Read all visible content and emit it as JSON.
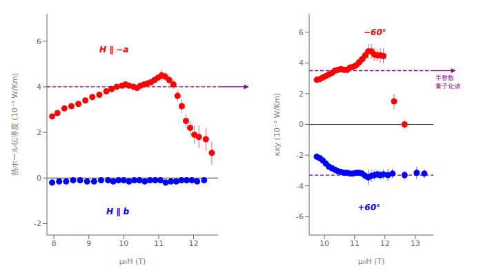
{
  "chart_data": [
    {
      "type": "scatter",
      "x_label": "μ₀H (T)",
      "y_label": "熱ホール伝導度 (10⁻³ W/Km)",
      "xlim": [
        7.8,
        12.7
      ],
      "ylim": [
        -2.5,
        7.2
      ],
      "xticks": [
        8,
        9,
        10,
        11,
        12
      ],
      "yticks": [
        -2,
        0,
        2,
        4,
        6
      ],
      "series": [
        {
          "color": "red",
          "marker": "circle",
          "x": [
            7.95,
            8.1,
            8.3,
            8.5,
            8.7,
            8.9,
            9.1,
            9.3,
            9.5,
            9.65,
            9.8,
            9.95,
            10.05,
            10.15,
            10.28,
            10.38,
            10.48,
            10.58,
            10.68,
            10.78,
            10.88,
            10.98,
            11.08,
            11.18,
            11.3,
            11.42,
            11.54,
            11.66,
            11.78,
            11.9,
            12.02,
            12.15,
            12.35,
            12.52
          ],
          "values": [
            2.7,
            2.85,
            3.05,
            3.15,
            3.25,
            3.4,
            3.55,
            3.65,
            3.8,
            3.9,
            4.0,
            4.05,
            4.1,
            4.05,
            4.0,
            3.95,
            4.05,
            4.1,
            4.15,
            4.2,
            4.3,
            4.4,
            4.5,
            4.45,
            4.3,
            4.1,
            3.6,
            3.15,
            2.5,
            2.2,
            1.9,
            1.8,
            1.7,
            1.1
          ],
          "errors": [
            0.1,
            0.1,
            0.1,
            0.1,
            0.1,
            0.1,
            0.15,
            0.1,
            0.1,
            0.15,
            0.1,
            0.1,
            0.1,
            0.1,
            0.15,
            0.1,
            0.1,
            0.1,
            0.1,
            0.1,
            0.1,
            0.1,
            0.25,
            0.2,
            0.2,
            0.2,
            0.25,
            0.3,
            0.3,
            0.3,
            0.4,
            0.5,
            0.5,
            0.5
          ]
        },
        {
          "color": "blue",
          "marker": "circle",
          "x": [
            7.95,
            8.15,
            8.35,
            8.55,
            8.75,
            8.95,
            9.15,
            9.35,
            9.55,
            9.7,
            9.85,
            10.0,
            10.15,
            10.3,
            10.45,
            10.6,
            10.75,
            10.9,
            11.05,
            11.2,
            11.35,
            11.5,
            11.65,
            11.8,
            11.95,
            12.1,
            12.3
          ],
          "values": [
            -0.2,
            -0.15,
            -0.15,
            -0.1,
            -0.1,
            -0.15,
            -0.15,
            -0.1,
            -0.1,
            -0.15,
            -0.1,
            -0.1,
            -0.15,
            -0.1,
            -0.1,
            -0.15,
            -0.1,
            -0.1,
            -0.1,
            -0.2,
            -0.15,
            -0.15,
            -0.1,
            -0.1,
            -0.1,
            -0.15,
            -0.1
          ],
          "errors": [
            0.1,
            0.1,
            0.1,
            0.1,
            0.1,
            0.1,
            0.1,
            0.1,
            0.1,
            0.1,
            0.1,
            0.1,
            0.15,
            0.1,
            0.1,
            0.1,
            0.1,
            0.1,
            0.1,
            0.15,
            0.1,
            0.1,
            0.1,
            0.1,
            0.1,
            0.1,
            0.1
          ]
        }
      ],
      "reference_lines": [
        {
          "y": 4.0,
          "color": "#8b008b",
          "line_style": "dashed"
        },
        {
          "y": 0,
          "color": "black",
          "line_style": "solid"
        }
      ],
      "annotations": [
        {
          "text": "H ∥ −a",
          "x": 9.3,
          "y": 5.5,
          "color": "red"
        },
        {
          "text": "H ∥ b",
          "x": 9.5,
          "y": -1.6,
          "color": "blue"
        }
      ]
    },
    {
      "type": "scatter",
      "x_label": "μ₀H (T)",
      "y_label": "κxy (10⁻³ W/Km)",
      "xlim": [
        9.5,
        13.6
      ],
      "ylim": [
        -7.2,
        7.2
      ],
      "xticks": [
        10,
        11,
        12,
        13
      ],
      "yticks": [
        -6,
        -4,
        -2,
        0,
        2,
        4,
        6
      ],
      "series": [
        {
          "color": "red",
          "marker": "circle",
          "x": [
            9.75,
            9.85,
            9.95,
            10.05,
            10.15,
            10.25,
            10.35,
            10.45,
            10.55,
            10.65,
            10.75,
            10.85,
            10.95,
            11.05,
            11.15,
            11.25,
            11.35,
            11.45,
            11.55,
            11.65,
            11.75,
            11.85,
            11.95,
            12.3,
            12.65
          ],
          "values": [
            2.9,
            2.95,
            3.05,
            3.15,
            3.25,
            3.35,
            3.5,
            3.55,
            3.6,
            3.55,
            3.55,
            3.7,
            3.75,
            3.85,
            4.05,
            4.25,
            4.5,
            4.75,
            4.75,
            4.55,
            4.5,
            4.5,
            4.45,
            1.5,
            0.0
          ],
          "errors": [
            0.15,
            0.15,
            0.1,
            0.15,
            0.2,
            0.2,
            0.2,
            0.2,
            0.15,
            0.2,
            0.2,
            0.2,
            0.2,
            0.25,
            0.3,
            0.3,
            0.35,
            0.5,
            0.5,
            0.4,
            0.4,
            0.5,
            0.5,
            0.5,
            0.3
          ]
        },
        {
          "color": "blue",
          "marker": "circle",
          "x": [
            9.75,
            9.85,
            9.95,
            10.05,
            10.15,
            10.25,
            10.35,
            10.45,
            10.55,
            10.65,
            10.75,
            10.85,
            10.95,
            11.05,
            11.15,
            11.25,
            11.35,
            11.45,
            11.55,
            11.65,
            11.75,
            11.85,
            11.95,
            12.1,
            12.25,
            12.65,
            13.05,
            13.3
          ],
          "values": [
            -2.1,
            -2.2,
            -2.35,
            -2.55,
            -2.75,
            -2.85,
            -2.95,
            -3.05,
            -3.1,
            -3.15,
            -3.15,
            -3.2,
            -3.2,
            -3.15,
            -3.15,
            -3.2,
            -3.35,
            -3.45,
            -3.35,
            -3.3,
            -3.25,
            -3.3,
            -3.25,
            -3.3,
            -3.2,
            -3.3,
            -3.15,
            -3.2
          ],
          "errors": [
            0.1,
            0.1,
            0.1,
            0.1,
            0.1,
            0.1,
            0.1,
            0.1,
            0.1,
            0.1,
            0.1,
            0.1,
            0.1,
            0.1,
            0.1,
            0.2,
            0.2,
            0.5,
            0.4,
            0.3,
            0.3,
            0.3,
            0.3,
            0.4,
            0.3,
            0.3,
            0.4,
            0.3
          ]
        }
      ],
      "reference_lines": [
        {
          "y": 3.5,
          "color": "#8b008b",
          "line_style": "dashed",
          "label": "半整数\n量子化値"
        },
        {
          "y": -3.3,
          "color": "#8b008b",
          "line_style": "dashed"
        },
        {
          "y": 0,
          "color": "black",
          "line_style": "solid"
        }
      ],
      "annotations": [
        {
          "text": "−60°",
          "x": 11.3,
          "y": 5.8,
          "color": "red"
        },
        {
          "text": "+60°",
          "x": 11.1,
          "y": -5.6,
          "color": "blue"
        }
      ]
    }
  ]
}
